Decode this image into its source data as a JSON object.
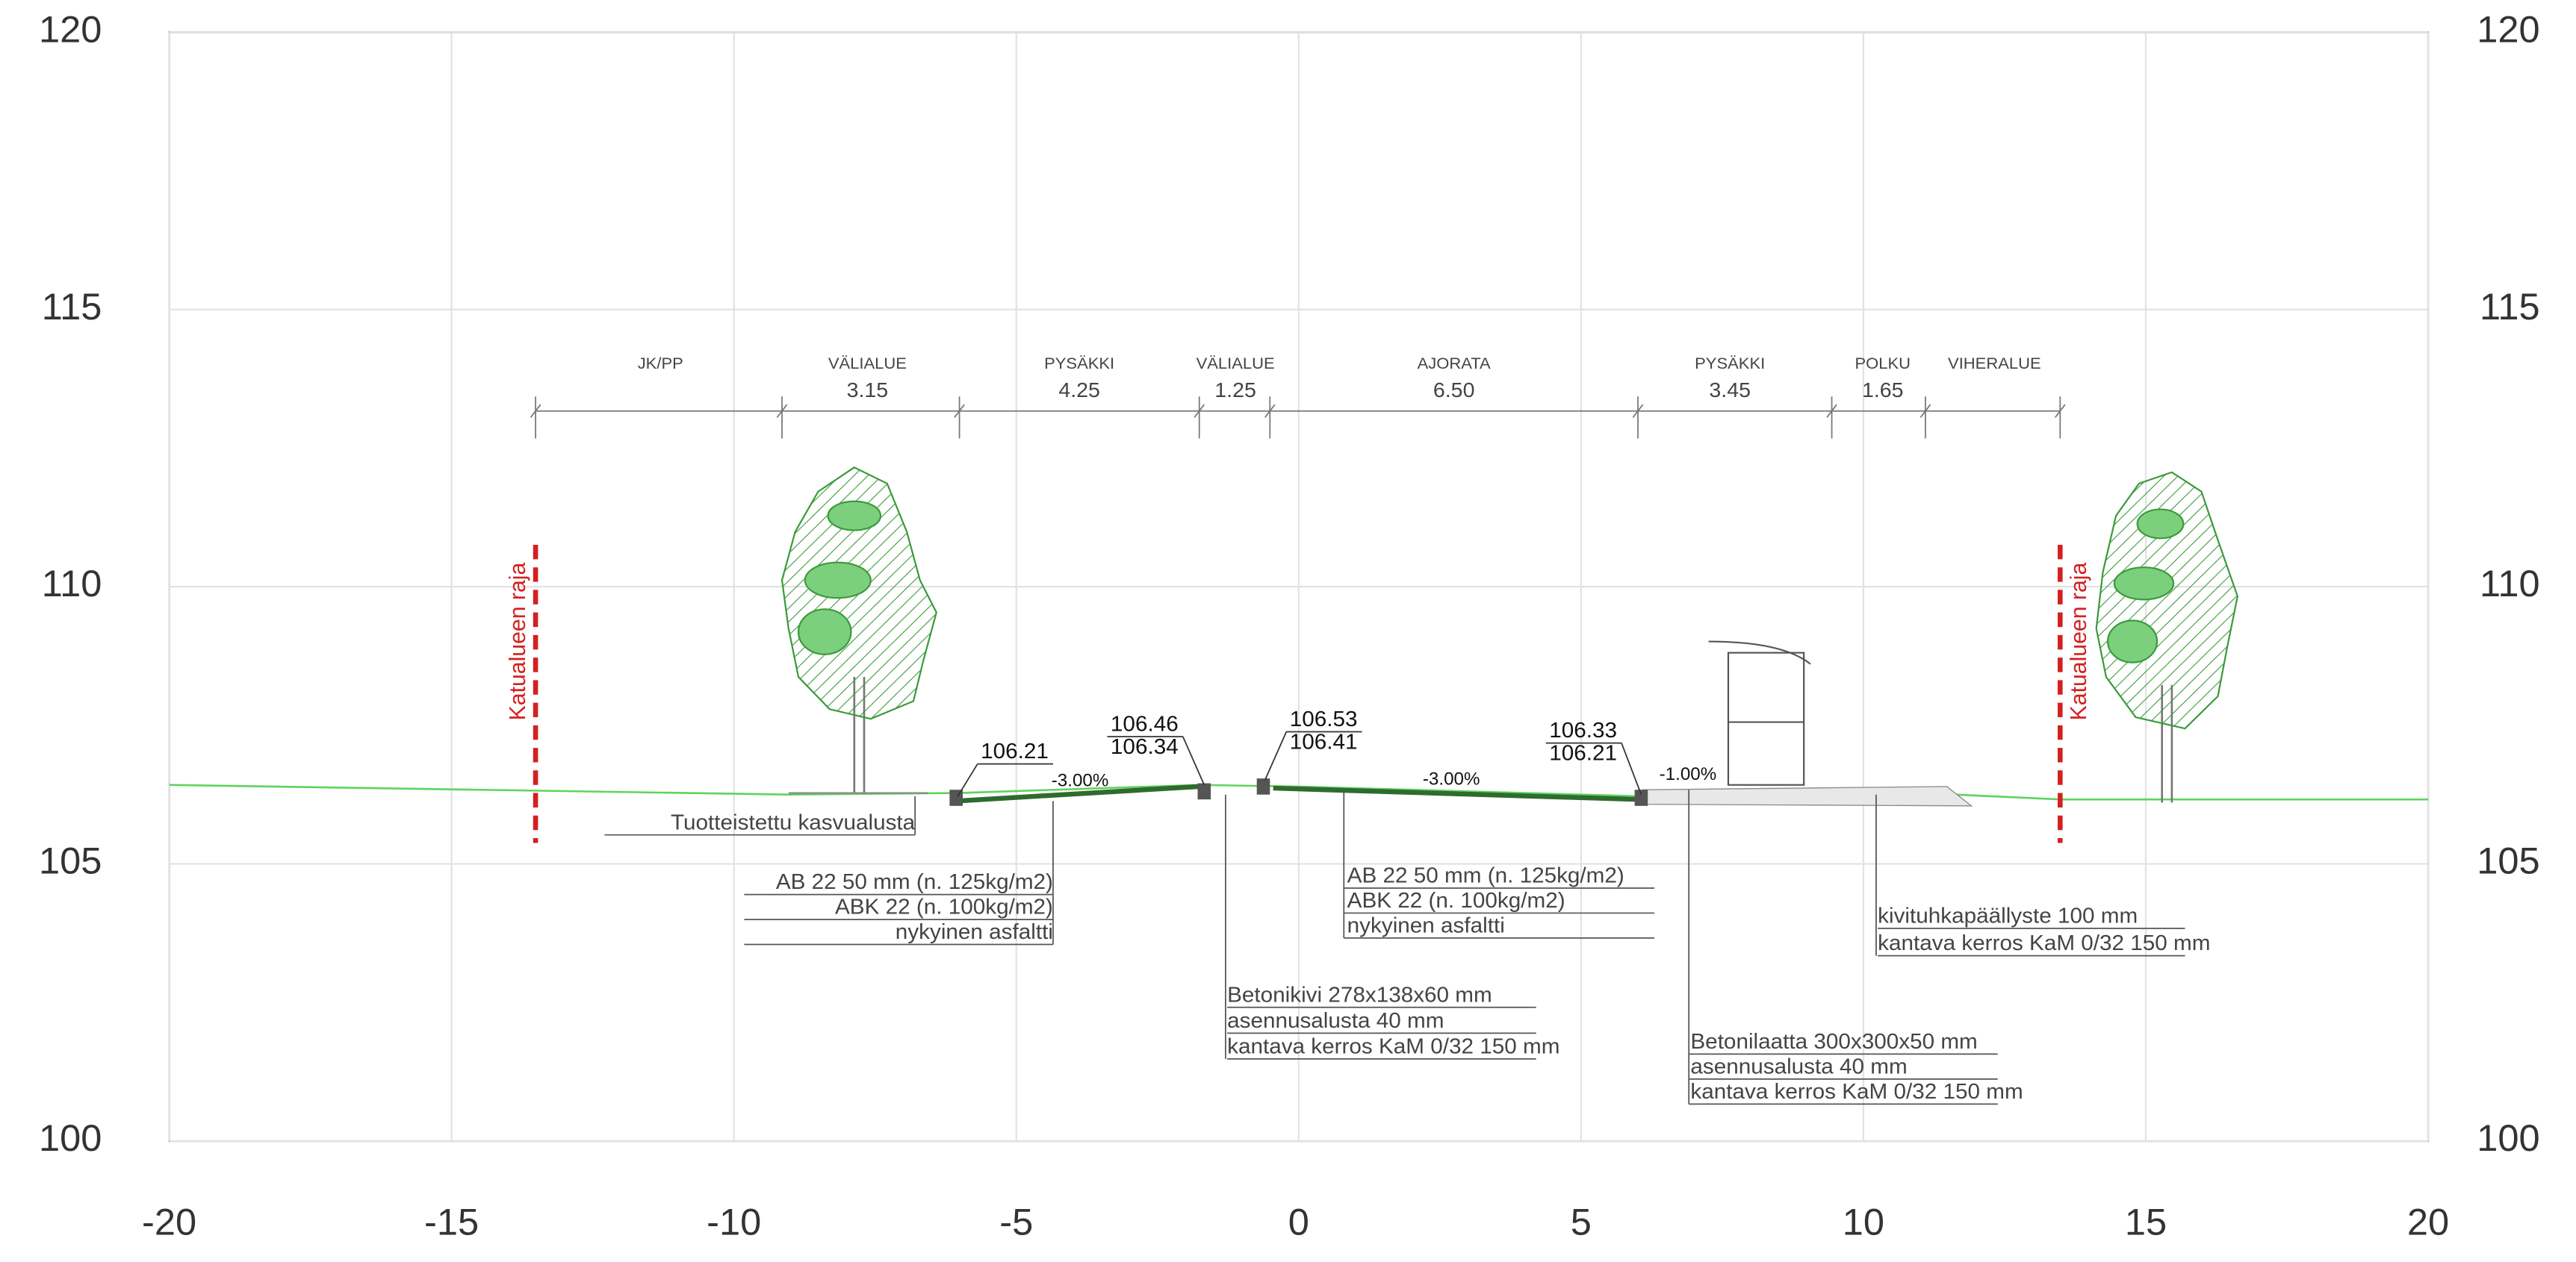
{
  "axes": {
    "xlim": [
      -20,
      20
    ],
    "ylim": [
      100,
      120
    ],
    "xticks": [
      -20,
      -15,
      -10,
      -5,
      0,
      5,
      10,
      15,
      20
    ],
    "yticks": [
      100,
      105,
      110,
      115,
      120
    ]
  },
  "boundary_label": "Katualueen raja",
  "sections": [
    {
      "name": "JK/PP"
    },
    {
      "name": "VÄLIALUE",
      "width": "3.15"
    },
    {
      "name": "PYSÄKKI",
      "width": "4.25"
    },
    {
      "name": "VÄLIALUE",
      "width": "1.25"
    },
    {
      "name": "AJORATA",
      "width": "6.50"
    },
    {
      "name": "PYSÄKKI",
      "width": "3.45"
    },
    {
      "name": "POLKU",
      "width": "1.65"
    },
    {
      "name": "VIHERALUE"
    }
  ],
  "elevations": [
    {
      "top": "106.21"
    },
    {
      "top": "106.46",
      "bottom": "106.34"
    },
    {
      "top": "106.53",
      "bottom": "106.41"
    },
    {
      "top": "106.33",
      "bottom": "106.21"
    }
  ],
  "slopes": [
    "-3.00%",
    "-3.00%",
    "-1.00%"
  ],
  "notes": [
    {
      "lines": [
        "Tuotteistettu kasvualusta"
      ]
    },
    {
      "lines": [
        "AB 22 50 mm (n. 125kg/m2)",
        "ABK 22 (n. 100kg/m2)",
        "nykyinen asfaltti"
      ]
    },
    {
      "lines": [
        "AB 22 50 mm (n. 125kg/m2)",
        "ABK 22 (n. 100kg/m2)",
        "nykyinen asfaltti"
      ]
    },
    {
      "lines": [
        "Betonikivi 278x138x60 mm",
        "asennusalusta 40 mm",
        "kantava kerros KaM 0/32 150 mm"
      ]
    },
    {
      "lines": [
        "Betonilaatta 300x300x50 mm",
        "asennusalusta 40 mm",
        "kantava kerros KaM 0/32 150 mm"
      ]
    },
    {
      "lines": [
        "kivituhkapäällyste 100 mm",
        "kantava kerros KaM 0/32 150 mm"
      ]
    }
  ]
}
